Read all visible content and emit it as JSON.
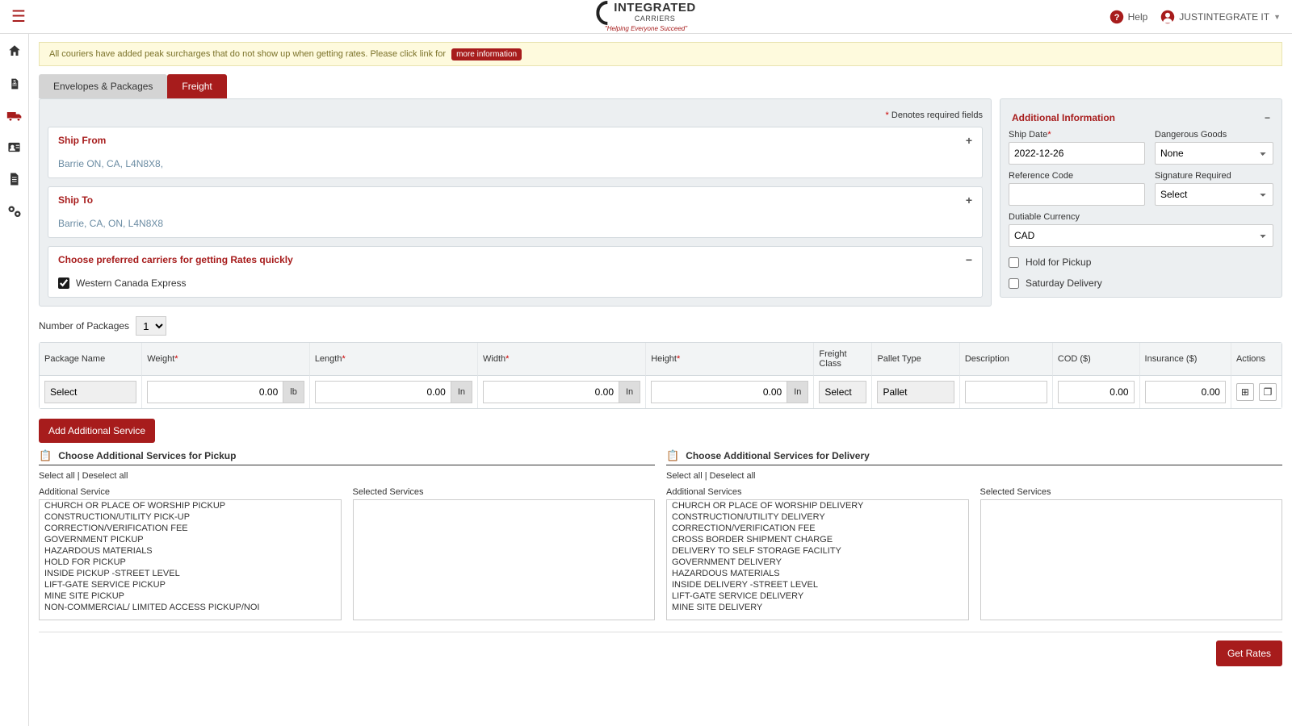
{
  "colors": {
    "brand": "#a71c1c",
    "panel_bg": "#eceff1",
    "border": "#d4dade",
    "alert_bg": "#fefadd"
  },
  "header": {
    "logo_line1": "INTEGRATED",
    "logo_line2": "CARRIERS",
    "logo_tagline": "\"Helping Everyone Succeed\"",
    "help_label": "Help",
    "user_label": "JUSTINTEGRATE IT"
  },
  "sidebar_icons": [
    "home",
    "invoice",
    "truck",
    "contact",
    "document",
    "settings"
  ],
  "alert": {
    "text": "All couriers have added peak surcharges that do not show up when getting rates. Please click link for",
    "link_label": "more information"
  },
  "tabs": {
    "envelopes": "Envelopes & Packages",
    "freight": "Freight"
  },
  "required_note": "Denotes required fields",
  "ship_from": {
    "title": "Ship From",
    "value": "Barrie ON, CA, L4N8X8,"
  },
  "ship_to": {
    "title": "Ship To",
    "value": "Barrie, CA, ON, L4N8X8"
  },
  "carriers": {
    "title": "Choose preferred carriers for getting Rates quickly",
    "items": [
      {
        "label": "Western Canada Express",
        "checked": true
      }
    ]
  },
  "additional_info": {
    "title": "Additional Information",
    "ship_date_label": "Ship Date",
    "ship_date_value": "2022-12-26",
    "dangerous_label": "Dangerous Goods",
    "dangerous_value": "None",
    "reference_label": "Reference Code",
    "reference_value": "",
    "signature_label": "Signature Required",
    "signature_value": "Select",
    "currency_label": "Dutiable Currency",
    "currency_value": "CAD",
    "hold_pickup": "Hold for Pickup",
    "saturday": "Saturday Delivery"
  },
  "packages": {
    "count_label": "Number of Packages",
    "count_value": "1",
    "headers": {
      "name": "Package Name",
      "weight": "Weight",
      "length": "Length",
      "width": "Width",
      "height": "Height",
      "freight_class": "Freight Class",
      "pallet_type": "Pallet Type",
      "description": "Description",
      "cod": "COD ($)",
      "insurance": "Insurance ($)",
      "actions": "Actions"
    },
    "row": {
      "name": "Select",
      "weight": "0.00",
      "weight_unit": "lb",
      "length": "0.00",
      "width": "0.00",
      "height": "0.00",
      "dim_unit": "In",
      "freight_class": "Select",
      "pallet_type": "Pallet",
      "description": "",
      "cod": "0.00",
      "insurance": "0.00"
    }
  },
  "add_service_btn": "Add Additional Service",
  "pickup_services": {
    "title": "Choose Additional Services for Pickup",
    "select_all": "Select all",
    "deselect_all": "Deselect all",
    "available_label": "Additional Service",
    "selected_label": "Selected Services",
    "options": [
      "CHURCH OR PLACE OF WORSHIP PICKUP",
      "CONSTRUCTION/UTILITY PICK-UP",
      "CORRECTION/VERIFICATION FEE",
      "GOVERNMENT PICKUP",
      "HAZARDOUS MATERIALS",
      "HOLD FOR PICKUP",
      "INSIDE PICKUP -STREET LEVEL",
      "LIFT-GATE SERVICE PICKUP",
      "MINE SITE PICKUP",
      "NON-COMMERCIAL/ LIMITED ACCESS PICKUP/NOI"
    ]
  },
  "delivery_services": {
    "title": "Choose Additional Services for Delivery",
    "select_all": "Select all",
    "deselect_all": "Deselect all",
    "available_label": "Additional Services",
    "selected_label": "Selected Services",
    "options": [
      "CHURCH OR PLACE OF WORSHIP DELIVERY",
      "CONSTRUCTION/UTILITY DELIVERY",
      "CORRECTION/VERIFICATION FEE",
      "CROSS BORDER SHIPMENT CHARGE",
      "DELIVERY TO SELF STORAGE FACILITY",
      "GOVERNMENT DELIVERY",
      "HAZARDOUS MATERIALS",
      "INSIDE DELIVERY -STREET LEVEL",
      "LIFT-GATE SERVICE DELIVERY",
      "MINE SITE DELIVERY"
    ]
  },
  "get_rates_btn": "Get Rates"
}
